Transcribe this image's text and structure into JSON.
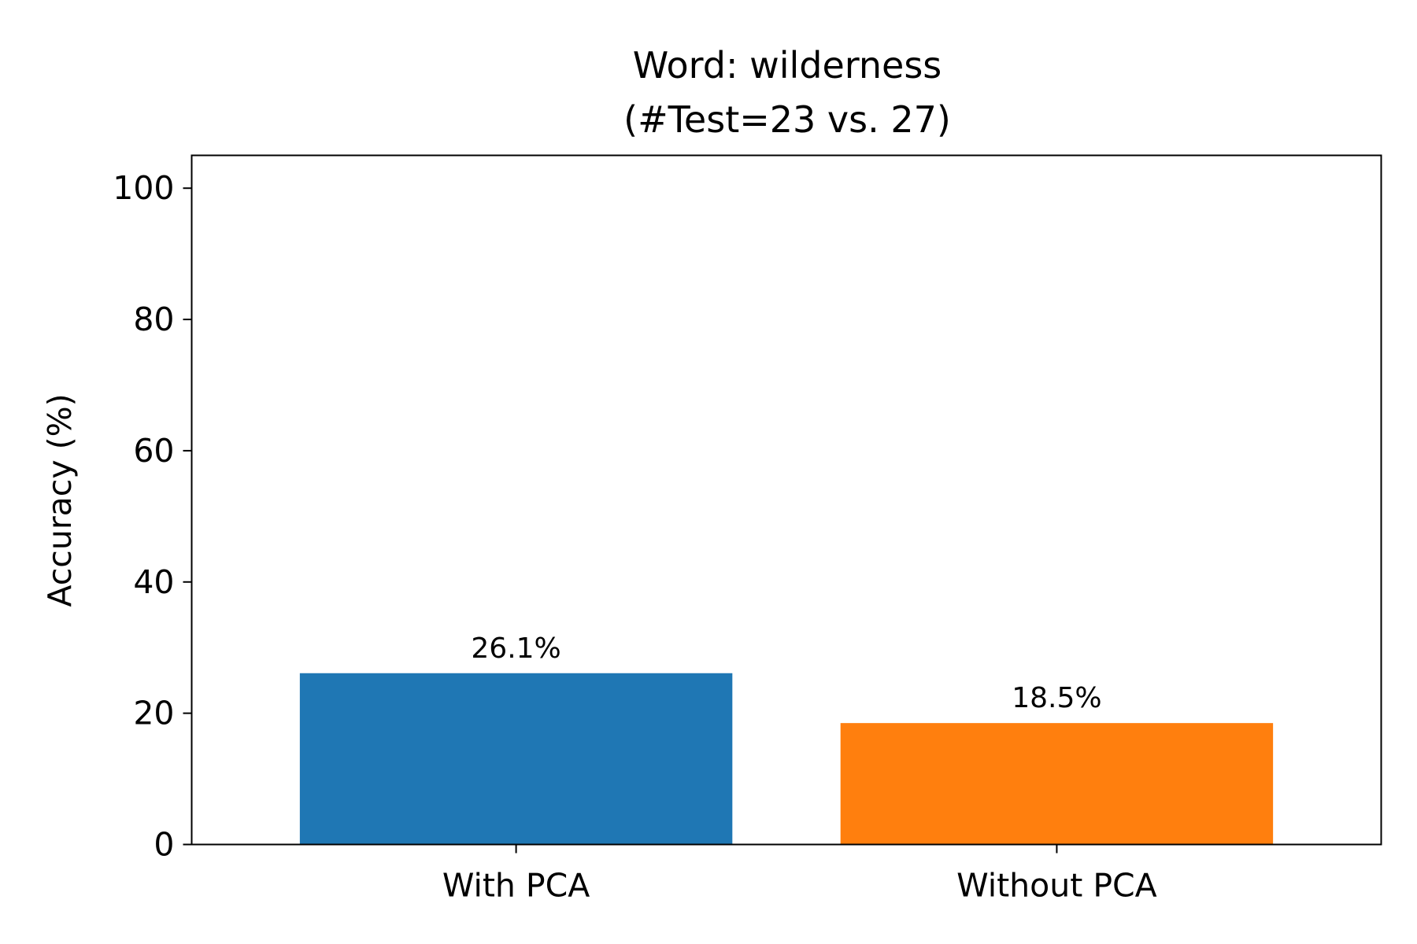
{
  "chart_data": {
    "type": "bar",
    "title_line1": "Word: wilderness",
    "title_line2": "(#Test=23 vs. 27)",
    "xlabel": "",
    "ylabel": "Accuracy (%)",
    "categories": [
      "With PCA",
      "Without PCA"
    ],
    "values": [
      26.1,
      18.5
    ],
    "value_labels": [
      "26.1%",
      "18.5%"
    ],
    "colors": [
      "#1f77b4",
      "#ff7f0e"
    ],
    "ylim": [
      0,
      105
    ],
    "yticks": [
      0,
      20,
      40,
      60,
      80,
      100
    ],
    "ytick_labels": [
      "0",
      "20",
      "40",
      "60",
      "80",
      "100"
    ],
    "grid": false,
    "legend": "none"
  }
}
